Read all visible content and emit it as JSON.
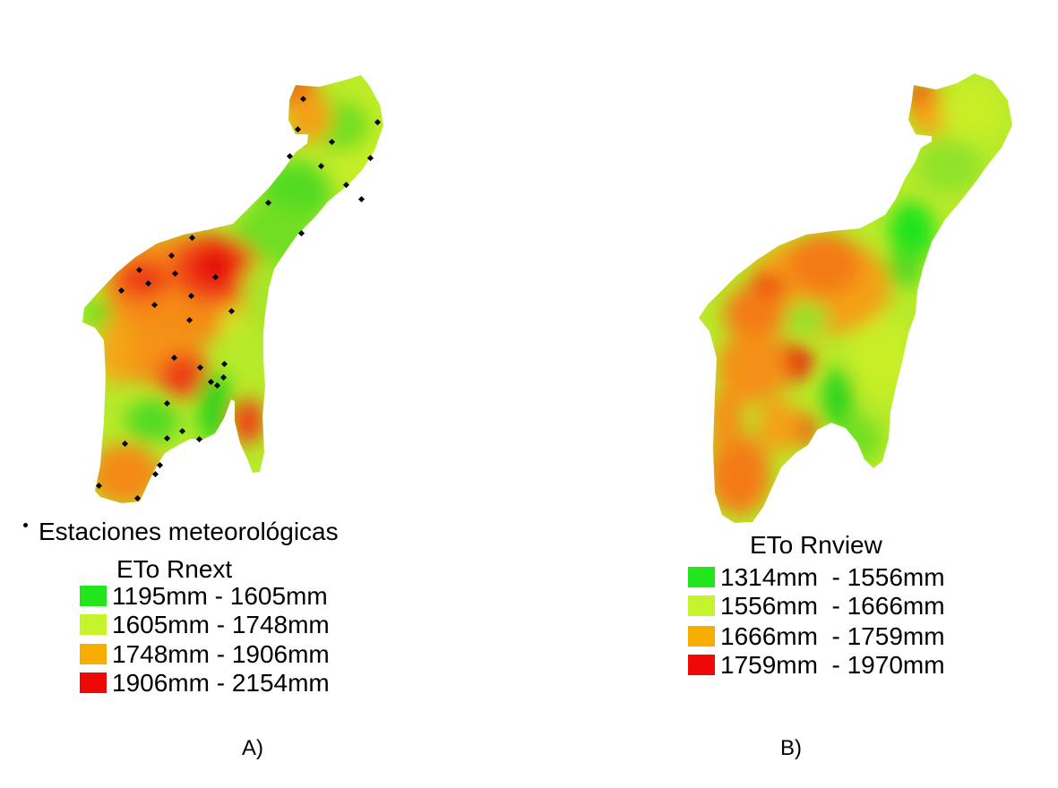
{
  "panels": [
    {
      "label": "A)",
      "legend_title": "ETo Rnext",
      "stations_label": "Estaciones meteorológicas",
      "classes": [
        {
          "label": "1195mm - 1605mm",
          "color": "#22e61b"
        },
        {
          "label": "1605mm - 1748mm",
          "color": "#c4f42b"
        },
        {
          "label": "1748mm - 1906mm",
          "color": "#f7ad00"
        },
        {
          "label": "1906mm - 2154mm",
          "color": "#ee0808"
        }
      ]
    },
    {
      "label": "B)",
      "legend_title": "ETo Rnview",
      "classes": [
        {
          "label": "1314mm  - 1556mm",
          "color": "#22e61b"
        },
        {
          "label": "1556mm  - 1666mm",
          "color": "#c4f42b"
        },
        {
          "label": "1666mm  - 1759mm",
          "color": "#f7ad00"
        },
        {
          "label": "1759mm  - 1970mm",
          "color": "#ee0808"
        }
      ]
    }
  ]
}
